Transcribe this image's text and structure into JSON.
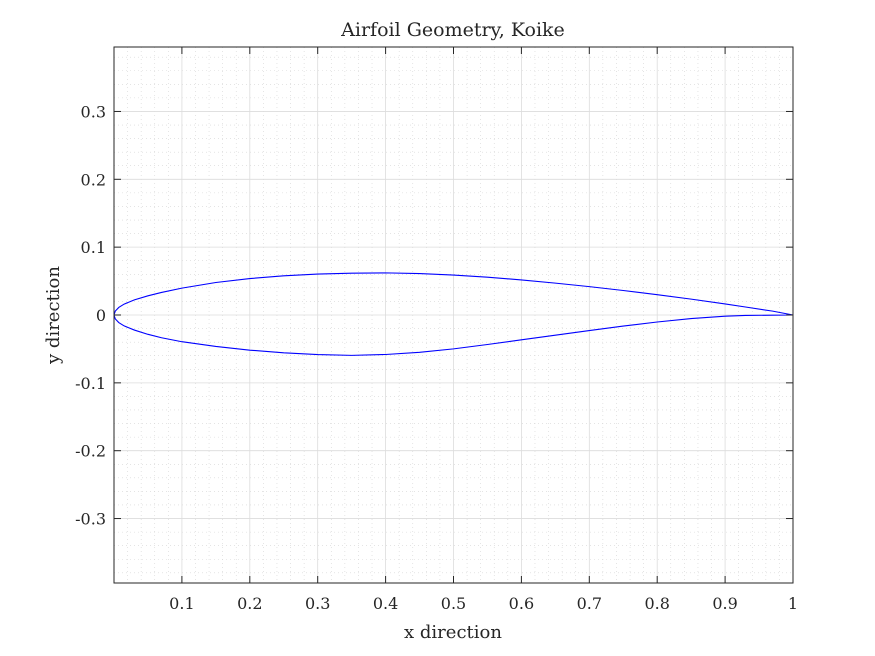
{
  "chart_data": {
    "type": "line",
    "title": "Airfoil Geometry, Koike",
    "xlabel": "x direction",
    "ylabel": "y direction",
    "xlim": [
      0,
      1
    ],
    "ylim": [
      -0.395,
      0.395
    ],
    "x_ticks": [
      0.1,
      0.2,
      0.3,
      0.4,
      0.5,
      0.6,
      0.7,
      0.8,
      0.9,
      1
    ],
    "x_tick_labels": [
      "0.1",
      "0.2",
      "0.3",
      "0.4",
      "0.5",
      "0.6",
      "0.7",
      "0.8",
      "0.9",
      "1"
    ],
    "y_ticks": [
      0.3,
      0.2,
      0.1,
      0,
      -0.1,
      -0.2,
      -0.3
    ],
    "y_tick_labels": [
      "0.3",
      "0.2",
      "0.1",
      "0",
      "-0.1",
      "-0.2",
      "-0.3"
    ],
    "grid": true,
    "minor_grid": true,
    "line_color": "#0000ff",
    "series": [
      {
        "x": [
          1.0,
          0.97,
          0.93,
          0.9,
          0.85,
          0.8,
          0.75,
          0.7,
          0.65,
          0.6,
          0.55,
          0.5,
          0.45,
          0.4,
          0.35,
          0.3,
          0.25,
          0.2,
          0.15,
          0.1,
          0.07,
          0.05,
          0.03,
          0.015,
          0.007,
          0.002,
          0.0,
          0.002,
          0.007,
          0.015,
          0.03,
          0.05,
          0.07,
          0.1,
          0.15,
          0.2,
          0.25,
          0.3,
          0.35,
          0.4,
          0.45,
          0.5,
          0.55,
          0.6,
          0.65,
          0.7,
          0.75,
          0.8,
          0.85,
          0.9,
          0.93,
          0.97,
          1.0
        ],
        "y": [
          0.0,
          0.0057,
          0.0118,
          0.0163,
          0.0234,
          0.0299,
          0.0361,
          0.0418,
          0.047,
          0.0517,
          0.0557,
          0.0589,
          0.0611,
          0.0621,
          0.0617,
          0.0603,
          0.0577,
          0.0537,
          0.0479,
          0.0396,
          0.0332,
          0.0283,
          0.0223,
          0.0161,
          0.0111,
          0.0059,
          0.0,
          -0.0059,
          -0.0111,
          -0.0161,
          -0.0222,
          -0.0285,
          -0.0335,
          -0.0394,
          -0.0464,
          -0.0518,
          -0.0557,
          -0.0583,
          -0.0595,
          -0.0582,
          -0.055,
          -0.0499,
          -0.0435,
          -0.0366,
          -0.0297,
          -0.0229,
          -0.0163,
          -0.0103,
          -0.0052,
          -0.0018,
          -0.0007,
          -0.0002,
          0.0
        ]
      }
    ]
  }
}
